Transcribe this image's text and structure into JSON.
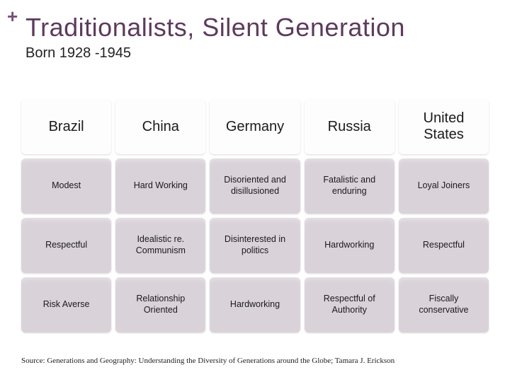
{
  "plus_symbol": "+",
  "title": "Traditionalists, Silent Generation",
  "subtitle": "Born 1928 -1945",
  "table": {
    "header_bg": "#fdfdfd",
    "data_bg": "#d9d2d9",
    "columns": [
      {
        "header": "Brazil",
        "cells": [
          "Modest",
          "Respectful",
          "Risk Averse"
        ]
      },
      {
        "header": "China",
        "cells": [
          "Hard Working",
          "Idealistic re. Communism",
          "Relationship Oriented"
        ]
      },
      {
        "header": "Germany",
        "cells": [
          "Disoriented and disillusioned",
          "Disinterested in politics",
          "Hardworking"
        ]
      },
      {
        "header": "Russia",
        "cells": [
          "Fatalistic and enduring",
          "Hardworking",
          "Respectful of Authority"
        ]
      },
      {
        "header": "United States",
        "cells": [
          "Loyal Joiners",
          "Respectful",
          "Fiscally conservative"
        ]
      }
    ]
  },
  "source": "Source: Generations and Geography: Understanding the Diversity of Generations around the Globe; Tamara J. Erickson"
}
